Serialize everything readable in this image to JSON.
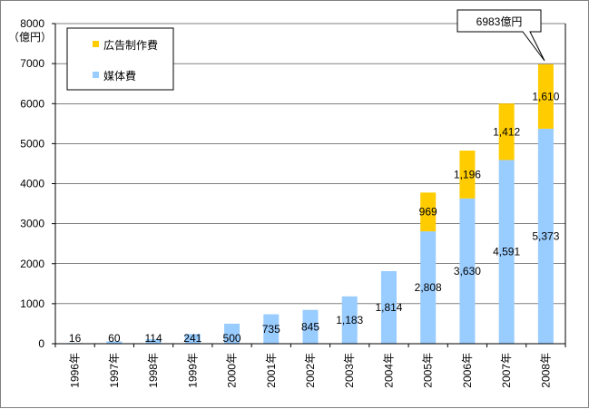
{
  "chart_data": {
    "type": "bar",
    "stacked": true,
    "ylabel_line1": "8000",
    "yunit": "（億円）",
    "ylim": [
      0,
      8000
    ],
    "yticks": [
      0,
      1000,
      2000,
      3000,
      4000,
      5000,
      6000,
      7000,
      8000
    ],
    "grid": true,
    "categories": [
      "1996年",
      "1997年",
      "1998年",
      "1999年",
      "2000年",
      "2001年",
      "2002年",
      "2003年",
      "2004年",
      "2005年",
      "2006年",
      "2007年",
      "2008年"
    ],
    "series": [
      {
        "name": "媒体費",
        "color": "#99ccff",
        "values": [
          16,
          60,
          114,
          241,
          500,
          735,
          845,
          1183,
          1814,
          2808,
          3630,
          4591,
          5373
        ],
        "labels": [
          "16",
          "60",
          "114",
          "241",
          "500",
          "735",
          "845",
          "1,183",
          "1,814",
          "2,808",
          "3,630",
          "4,591",
          "5,373"
        ]
      },
      {
        "name": "広告制作費",
        "color": "#ffcc00",
        "values": [
          0,
          0,
          0,
          0,
          0,
          0,
          0,
          0,
          0,
          969,
          1196,
          1412,
          1610
        ],
        "labels": [
          "",
          "",
          "",
          "",
          "",
          "",
          "",
          "",
          "",
          "969",
          "1,196",
          "1,412",
          "1,610"
        ]
      }
    ],
    "legend": {
      "placement": "top-left",
      "order": [
        "広告制作費",
        "媒体費"
      ]
    },
    "annotation": "6983億円"
  }
}
